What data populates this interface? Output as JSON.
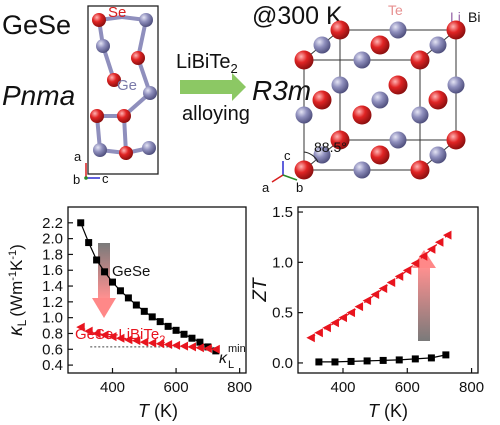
{
  "top_left": {
    "compound": "GeSe",
    "space_group": "Pnma",
    "atom_se": "Se",
    "atom_ge": "Ge",
    "axes": {
      "a": "a",
      "b": "b",
      "c": "c"
    }
  },
  "arrow": {
    "label_pre": "LiBiTe",
    "label_sub": "2",
    "label_line2": "alloying"
  },
  "top_right": {
    "condition": "@300 K",
    "space_group": "R3m",
    "atom_te": "Te",
    "atom_li": "Li",
    "atom_bi": "Bi",
    "angle": "88.5°",
    "axes": {
      "a": "a",
      "b": "b",
      "c": "c"
    }
  },
  "colors": {
    "se_red": "#d81e1e",
    "ge_purple": "#8f8fbd",
    "arrow_green": "#8cc864",
    "series_red": "#e8141e",
    "series_black": "#000000",
    "grad_top": "#7a7a7a",
    "grad_bottom": "#ff9090"
  },
  "chart_data": [
    {
      "type": "line",
      "ylabel_sym": "κ",
      "ylabel_sub": "L",
      "ylabel_unit_pre": "(Wm",
      "ylabel_sup1": "-1",
      "ylabel_mid": "K",
      "ylabel_sup2": "-1",
      "ylabel_unit_post": ")",
      "xlabel_sym": "T",
      "xlabel_unit": " (K)",
      "xlim": [
        260,
        820
      ],
      "ylim": [
        0.3,
        2.4
      ],
      "xticks": [
        400,
        600,
        800
      ],
      "xtick_labels": [
        "400",
        "600",
        "800"
      ],
      "yticks": [
        0.4,
        0.6,
        0.8,
        1.0,
        1.2,
        1.4,
        1.6,
        1.8,
        2.0,
        2.2
      ],
      "ytick_labels": [
        "0.4",
        "0.6",
        "0.8",
        "1.0",
        "1.2",
        "1.4",
        "1.6",
        "1.8",
        "2.0",
        "2.2"
      ],
      "series": [
        {
          "name": "GeSe",
          "x": [
            300,
            325,
            350,
            375,
            400,
            425,
            450,
            475,
            500,
            525,
            550,
            575,
            600,
            625,
            650,
            675,
            700,
            725
          ],
          "y": [
            2.2,
            1.95,
            1.73,
            1.58,
            1.45,
            1.34,
            1.25,
            1.16,
            1.08,
            1.01,
            0.95,
            0.89,
            0.84,
            0.79,
            0.74,
            0.69,
            0.63,
            0.58
          ]
        },
        {
          "name": "GeSe-LiBiTe",
          "name_sub": "2",
          "x": [
            300,
            325,
            350,
            375,
            400,
            425,
            450,
            475,
            500,
            525,
            550,
            575,
            600,
            625,
            650,
            675,
            700,
            725
          ],
          "y": [
            0.88,
            0.83,
            0.8,
            0.78,
            0.76,
            0.74,
            0.72,
            0.71,
            0.69,
            0.68,
            0.67,
            0.66,
            0.65,
            0.64,
            0.63,
            0.62,
            0.61,
            0.6
          ]
        }
      ],
      "min_label_sym": "κ",
      "min_label_sub": "L",
      "min_label_sup": "min",
      "min_level": 0.63
    },
    {
      "type": "line",
      "ylabel": "ZT",
      "xlabel_sym": "T",
      "xlabel_unit": " (K)",
      "xlim": [
        260,
        820
      ],
      "ylim": [
        -0.1,
        1.55
      ],
      "xticks": [
        400,
        600,
        800
      ],
      "xtick_labels": [
        "400",
        "600",
        "800"
      ],
      "yticks": [
        0.0,
        0.5,
        1.0,
        1.5
      ],
      "ytick_labels": [
        "0.0",
        "0.5",
        "1.0",
        "1.5"
      ],
      "series": [
        {
          "name": "GeSe-LiBiTe2",
          "x": [
            300,
            325,
            350,
            375,
            400,
            425,
            450,
            475,
            500,
            525,
            550,
            575,
            600,
            625,
            650,
            675,
            700,
            725
          ],
          "y": [
            0.25,
            0.3,
            0.35,
            0.4,
            0.45,
            0.5,
            0.56,
            0.62,
            0.68,
            0.74,
            0.8,
            0.86,
            0.92,
            0.99,
            1.06,
            1.13,
            1.2,
            1.27
          ]
        },
        {
          "name": "GeSe",
          "x": [
            325,
            375,
            425,
            475,
            525,
            575,
            625,
            675,
            720
          ],
          "y": [
            0.01,
            0.01,
            0.015,
            0.02,
            0.025,
            0.03,
            0.04,
            0.05,
            0.08
          ]
        }
      ]
    }
  ]
}
